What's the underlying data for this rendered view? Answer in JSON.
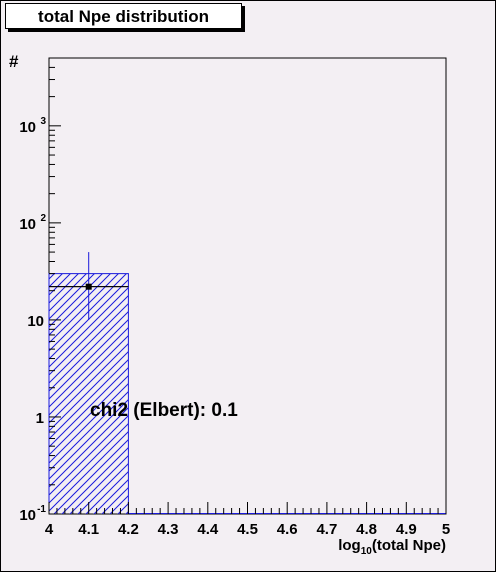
{
  "chart_data": {
    "type": "bar",
    "title": "total Npe distribution",
    "xlabel_main": "log",
    "xlabel_sub": "10",
    "xlabel_rest": "(total Npe)",
    "ylabel": "#",
    "x_ticks": [
      "4",
      "4.1",
      "4.2",
      "4.3",
      "4.4",
      "4.5",
      "4.6",
      "4.7",
      "4.8",
      "4.9",
      "5"
    ],
    "xlim": [
      4,
      5
    ],
    "ylim": [
      0.1,
      5000
    ],
    "y_scale": "log",
    "y_ticks": [
      {
        "value": 0.1,
        "base": "10",
        "exp": "-1"
      },
      {
        "value": 1,
        "base": "1",
        "exp": ""
      },
      {
        "value": 10,
        "base": "10",
        "exp": ""
      },
      {
        "value": 100,
        "base": "10",
        "exp": "2"
      },
      {
        "value": 1000,
        "base": "10",
        "exp": "3"
      }
    ],
    "histogram": {
      "name": "",
      "bins": [
        {
          "x_low": 4.0,
          "x_high": 4.2,
          "value": 30
        }
      ],
      "fill": "hatched",
      "color": "#1a1adc"
    },
    "overlay_line": {
      "x_low": 4.0,
      "x_high": 4.2,
      "value": 22,
      "color": "#000000"
    },
    "data_point": {
      "x": 4.1,
      "y": 22,
      "y_err_low": 12,
      "y_err_high": 28,
      "x_err": 0.1,
      "err_color": "#1a1adc"
    },
    "annotation": "chi2 (Elbert): 0.1"
  }
}
